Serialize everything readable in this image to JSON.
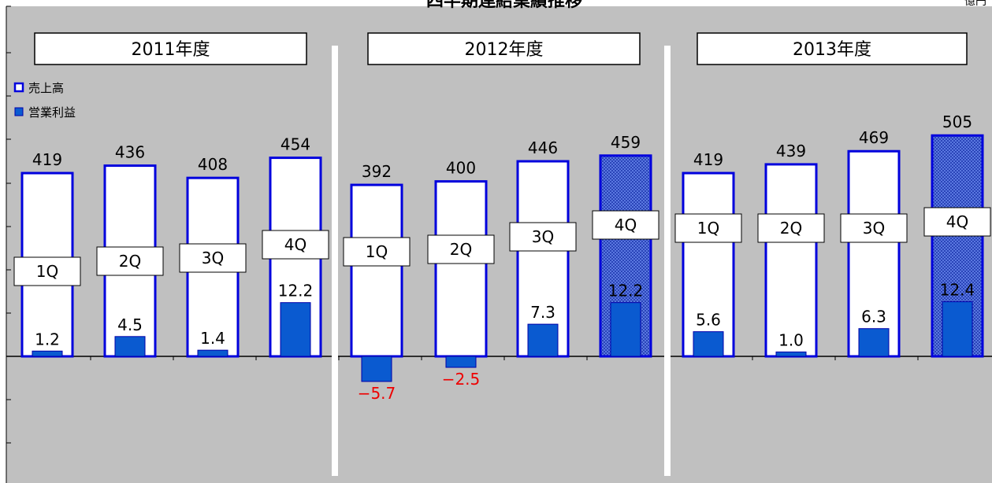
{
  "colors": {
    "plot_bg": "#c0c0c0",
    "sales_border": "#0000dd",
    "sales_fill": "#ffffff",
    "profit_fill": "#0a5ad0",
    "profit_border": "#0000aa",
    "highlight_fill": "#3a5ac8",
    "negative_label": "#ee0000"
  },
  "chart_data": {
    "type": "bar",
    "title": "四半期連結業績推移",
    "unit_label": "億円",
    "legend": {
      "placement": "top-left",
      "entries": [
        {
          "name": "売上高",
          "icon": "outlined-square-icon"
        },
        {
          "name": "営業利益",
          "icon": "filled-square-icon"
        }
      ]
    },
    "ylim": [
      -80,
      400
    ],
    "grid": false,
    "groups": [
      {
        "label": "2011年度",
        "bars": [
          {
            "quarter": "1Q",
            "sales": 419,
            "sales_label": "419",
            "profit": 1.2,
            "profit_label": "1.2",
            "highlight": false
          },
          {
            "quarter": "2Q",
            "sales": 436,
            "sales_label": "436",
            "profit": 4.5,
            "profit_label": "4.5",
            "highlight": false
          },
          {
            "quarter": "3Q",
            "sales": 408,
            "sales_label": "408",
            "profit": 1.4,
            "profit_label": "1.4",
            "highlight": false
          },
          {
            "quarter": "4Q",
            "sales": 454,
            "sales_label": "454",
            "profit": 12.2,
            "profit_label": "12.2",
            "highlight": false
          }
        ]
      },
      {
        "label": "2012年度",
        "bars": [
          {
            "quarter": "1Q",
            "sales": 392,
            "sales_label": "392",
            "profit": -5.7,
            "profit_label": "−5.7",
            "highlight": false
          },
          {
            "quarter": "2Q",
            "sales": 400,
            "sales_label": "400",
            "profit": -2.5,
            "profit_label": "−2.5",
            "highlight": false
          },
          {
            "quarter": "3Q",
            "sales": 446,
            "sales_label": "446",
            "profit": 7.3,
            "profit_label": "7.3",
            "highlight": false
          },
          {
            "quarter": "4Q",
            "sales": 459,
            "sales_label": "459",
            "profit": 12.2,
            "profit_label": "12.2",
            "highlight": true
          }
        ]
      },
      {
        "label": "2013年度",
        "bars": [
          {
            "quarter": "1Q",
            "sales": 419,
            "sales_label": "419",
            "profit": 5.6,
            "profit_label": "5.6",
            "highlight": false
          },
          {
            "quarter": "2Q",
            "sales": 439,
            "sales_label": "439",
            "profit": 1.0,
            "profit_label": "1.0",
            "highlight": false
          },
          {
            "quarter": "3Q",
            "sales": 469,
            "sales_label": "469",
            "profit": 6.3,
            "profit_label": "6.3",
            "highlight": false
          },
          {
            "quarter": "4Q",
            "sales": 505,
            "sales_label": "505",
            "profit": 12.4,
            "profit_label": "12.4",
            "highlight": true
          }
        ]
      }
    ]
  }
}
